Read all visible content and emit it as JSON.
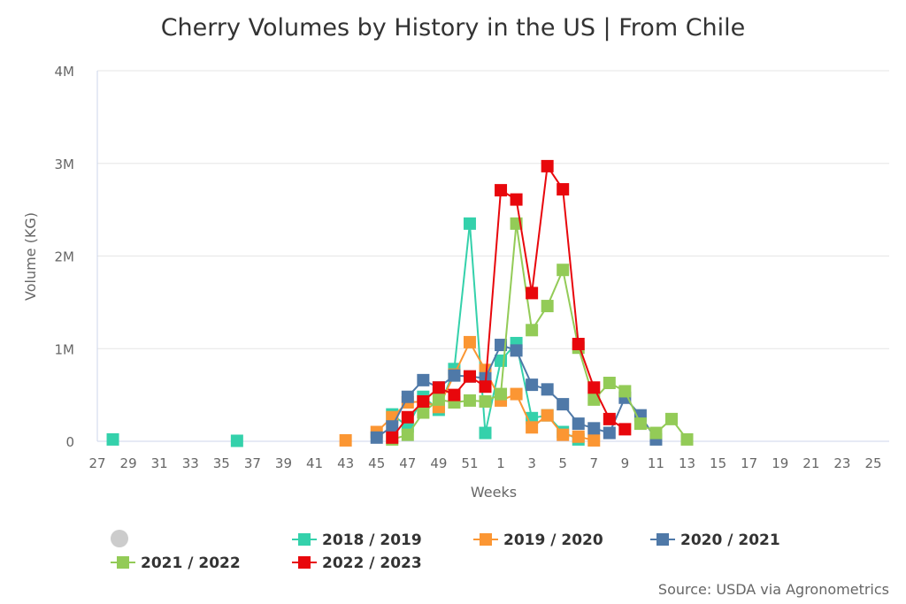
{
  "chart_data": {
    "type": "line",
    "title": "Cherry Volumes by History in the US | From Chile",
    "xlabel": "Weeks",
    "ylabel": "Volume (KG)",
    "ylim": [
      0,
      4000000
    ],
    "y_ticks": [
      "0",
      "1M",
      "2M",
      "3M",
      "4M"
    ],
    "y_tick_values": [
      0,
      1000000,
      2000000,
      3000000,
      4000000
    ],
    "categories": [
      27,
      28,
      29,
      30,
      31,
      32,
      33,
      34,
      35,
      36,
      37,
      38,
      39,
      40,
      41,
      42,
      43,
      44,
      45,
      46,
      47,
      48,
      49,
      50,
      51,
      52,
      1,
      2,
      3,
      4,
      5,
      6,
      7,
      8,
      9,
      10,
      11,
      12,
      13,
      14,
      15,
      16,
      17,
      18,
      19,
      20,
      21,
      22,
      23,
      24,
      25,
      26
    ],
    "x_tick_labels": [
      "27",
      "29",
      "31",
      "33",
      "35",
      "37",
      "39",
      "41",
      "43",
      "45",
      "47",
      "49",
      "51",
      "1",
      "3",
      "5",
      "7",
      "9",
      "11",
      "13",
      "15",
      "17",
      "19",
      "21",
      "23",
      "25"
    ],
    "grid": "horizontal",
    "legend_position": "bottom",
    "legend_hidden_marker_color": "#cccccc",
    "series": [
      {
        "name": "2018 / 2019",
        "color": "#34d1ab",
        "points": [
          [
            28,
            20000
          ],
          [
            36,
            5000
          ],
          [
            46,
            290000
          ],
          [
            47,
            160000
          ],
          [
            48,
            480000
          ],
          [
            49,
            340000
          ],
          [
            50,
            780000
          ],
          [
            51,
            2350000
          ],
          [
            52,
            90000
          ],
          [
            1,
            870000
          ],
          [
            2,
            1060000
          ],
          [
            3,
            250000
          ],
          [
            4,
            280000
          ],
          [
            5,
            100000
          ],
          [
            6,
            20000
          ]
        ]
      },
      {
        "name": "2019 / 2020",
        "color": "#fb9633",
        "points": [
          [
            43,
            10000
          ],
          [
            45,
            100000
          ],
          [
            46,
            260000
          ],
          [
            47,
            420000
          ],
          [
            48,
            430000
          ],
          [
            49,
            370000
          ],
          [
            50,
            720000
          ],
          [
            51,
            1070000
          ],
          [
            52,
            770000
          ],
          [
            1,
            440000
          ],
          [
            2,
            510000
          ],
          [
            3,
            150000
          ],
          [
            4,
            280000
          ],
          [
            5,
            70000
          ],
          [
            6,
            50000
          ],
          [
            7,
            10000
          ]
        ]
      },
      {
        "name": "2020 / 2021",
        "color": "#4f79a8",
        "points": [
          [
            45,
            40000
          ],
          [
            46,
            160000
          ],
          [
            47,
            480000
          ],
          [
            48,
            660000
          ],
          [
            49,
            580000
          ],
          [
            50,
            710000
          ],
          [
            51,
            700000
          ],
          [
            52,
            680000
          ],
          [
            1,
            1040000
          ],
          [
            2,
            980000
          ],
          [
            3,
            610000
          ],
          [
            4,
            560000
          ],
          [
            5,
            400000
          ],
          [
            6,
            190000
          ],
          [
            7,
            140000
          ],
          [
            8,
            90000
          ],
          [
            9,
            470000
          ],
          [
            10,
            280000
          ],
          [
            11,
            20000
          ]
        ]
      },
      {
        "name": "2021 / 2022",
        "color": "#93cb57",
        "points": [
          [
            46,
            20000
          ],
          [
            47,
            70000
          ],
          [
            48,
            310000
          ],
          [
            49,
            450000
          ],
          [
            50,
            420000
          ],
          [
            51,
            440000
          ],
          [
            52,
            430000
          ],
          [
            1,
            510000
          ],
          [
            2,
            2350000
          ],
          [
            3,
            1200000
          ],
          [
            4,
            1460000
          ],
          [
            5,
            1850000
          ],
          [
            6,
            1010000
          ],
          [
            7,
            450000
          ],
          [
            8,
            630000
          ],
          [
            9,
            540000
          ],
          [
            10,
            190000
          ],
          [
            11,
            90000
          ],
          [
            12,
            240000
          ],
          [
            13,
            20000
          ]
        ]
      },
      {
        "name": "2022 / 2023",
        "color": "#e8070c",
        "points": [
          [
            46,
            40000
          ],
          [
            47,
            260000
          ],
          [
            48,
            430000
          ],
          [
            49,
            580000
          ],
          [
            50,
            500000
          ],
          [
            51,
            700000
          ],
          [
            52,
            590000
          ],
          [
            1,
            2710000
          ],
          [
            2,
            2610000
          ],
          [
            3,
            1600000
          ],
          [
            4,
            2970000
          ],
          [
            5,
            2720000
          ],
          [
            6,
            1050000
          ],
          [
            7,
            580000
          ],
          [
            8,
            240000
          ],
          [
            9,
            130000
          ]
        ]
      }
    ],
    "source": "Source: USDA via Agronometrics"
  }
}
